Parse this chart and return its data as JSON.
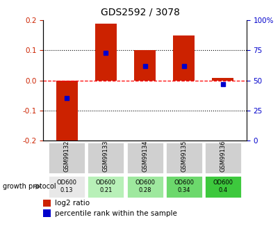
{
  "title": "GDS2592 / 3078",
  "samples": [
    "GSM99132",
    "GSM99133",
    "GSM99134",
    "GSM99135",
    "GSM99136"
  ],
  "log2_ratio": [
    -0.2,
    0.19,
    0.1,
    0.15,
    0.008
  ],
  "percentile_rank": [
    35,
    73,
    62,
    62,
    47
  ],
  "bar_color": "#cc2200",
  "dot_color": "#0000cc",
  "ylim_left": [
    -0.2,
    0.2
  ],
  "ylim_right": [
    0,
    100
  ],
  "yticks_left": [
    -0.2,
    -0.1,
    0.0,
    0.1,
    0.2
  ],
  "yticks_right": [
    0,
    25,
    50,
    75,
    100
  ],
  "ytick_labels_right": [
    "0",
    "25",
    "50",
    "75",
    "100%"
  ],
  "growth_protocol_label": "growth protocol",
  "growth_protocol_values": [
    "OD600\n0.13",
    "OD600\n0.21",
    "OD600\n0.28",
    "OD600\n0.34",
    "OD600\n0.4"
  ],
  "growth_protocol_colors": [
    "#e8e8e8",
    "#b8f0b8",
    "#9ee89e",
    "#6cd86c",
    "#3dc83d"
  ],
  "legend_log2": "log2 ratio",
  "legend_pct": "percentile rank within the sample",
  "bar_width": 0.55,
  "left_tick_color": "#cc2200",
  "right_axis_color": "#0000cc",
  "sample_box_color": "#d0d0d0",
  "box_edge_color": "white"
}
